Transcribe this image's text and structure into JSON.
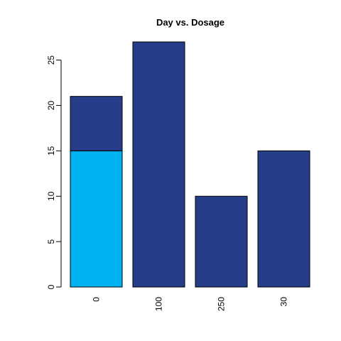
{
  "chart_data": {
    "type": "bar",
    "stacked": true,
    "title": "Day vs. Dosage",
    "xlabel": "",
    "ylabel": "",
    "categories": [
      "0",
      "100",
      "250",
      "30"
    ],
    "series": [
      {
        "values": [
          15,
          0,
          0,
          0
        ],
        "color": "#00b3f0"
      },
      {
        "values": [
          6,
          27,
          10,
          15
        ],
        "color": "#263e8a"
      }
    ],
    "ylim": [
      0,
      27
    ],
    "yticks": [
      0,
      5,
      10,
      15,
      20,
      25
    ],
    "grid": false,
    "legend": "none",
    "x_tick_label_rotation": "vertical"
  }
}
